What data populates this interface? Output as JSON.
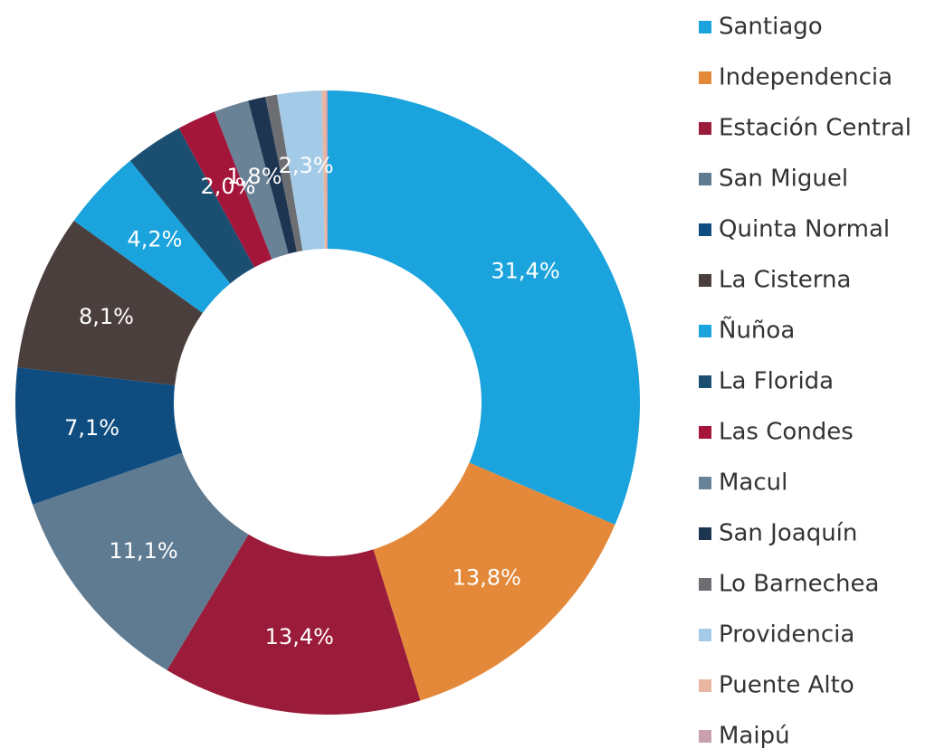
{
  "chart_data": {
    "type": "donut",
    "categories": [
      "Santiago",
      "Independencia",
      "Estación Central",
      "San Miguel",
      "Quinta Normal",
      "La Cisterna",
      "Ñuñoa",
      "La Florida",
      "Las Condes",
      "Macul",
      "San Joaquín",
      "Lo Barnechea",
      "Providencia",
      "Puente Alto",
      "Maipú"
    ],
    "values": [
      31.4,
      13.8,
      13.4,
      11.1,
      7.1,
      8.1,
      4.2,
      3.0,
      2.0,
      1.8,
      0.9,
      0.6,
      2.3,
      0.2,
      0.1
    ],
    "value_labels": [
      "31,4%",
      "13,8%",
      "13,4%",
      "11,1%",
      "7,1%",
      "8,1%",
      "4,2%",
      null,
      "2,0%",
      "1,8%",
      null,
      null,
      "2,3%",
      null,
      null
    ],
    "colors": [
      "#1aa3dc",
      "#e4893a",
      "#9b1b3a",
      "#5f7b92",
      "#0f4d80",
      "#4a3f3c",
      "#1aa3dc",
      "#1b4f72",
      "#a4153a",
      "#6a8296",
      "#1e3552",
      "#6d6e72",
      "#a3cbe8",
      "#e8b6a0",
      "#c9a0b0"
    ],
    "legend": "right"
  }
}
